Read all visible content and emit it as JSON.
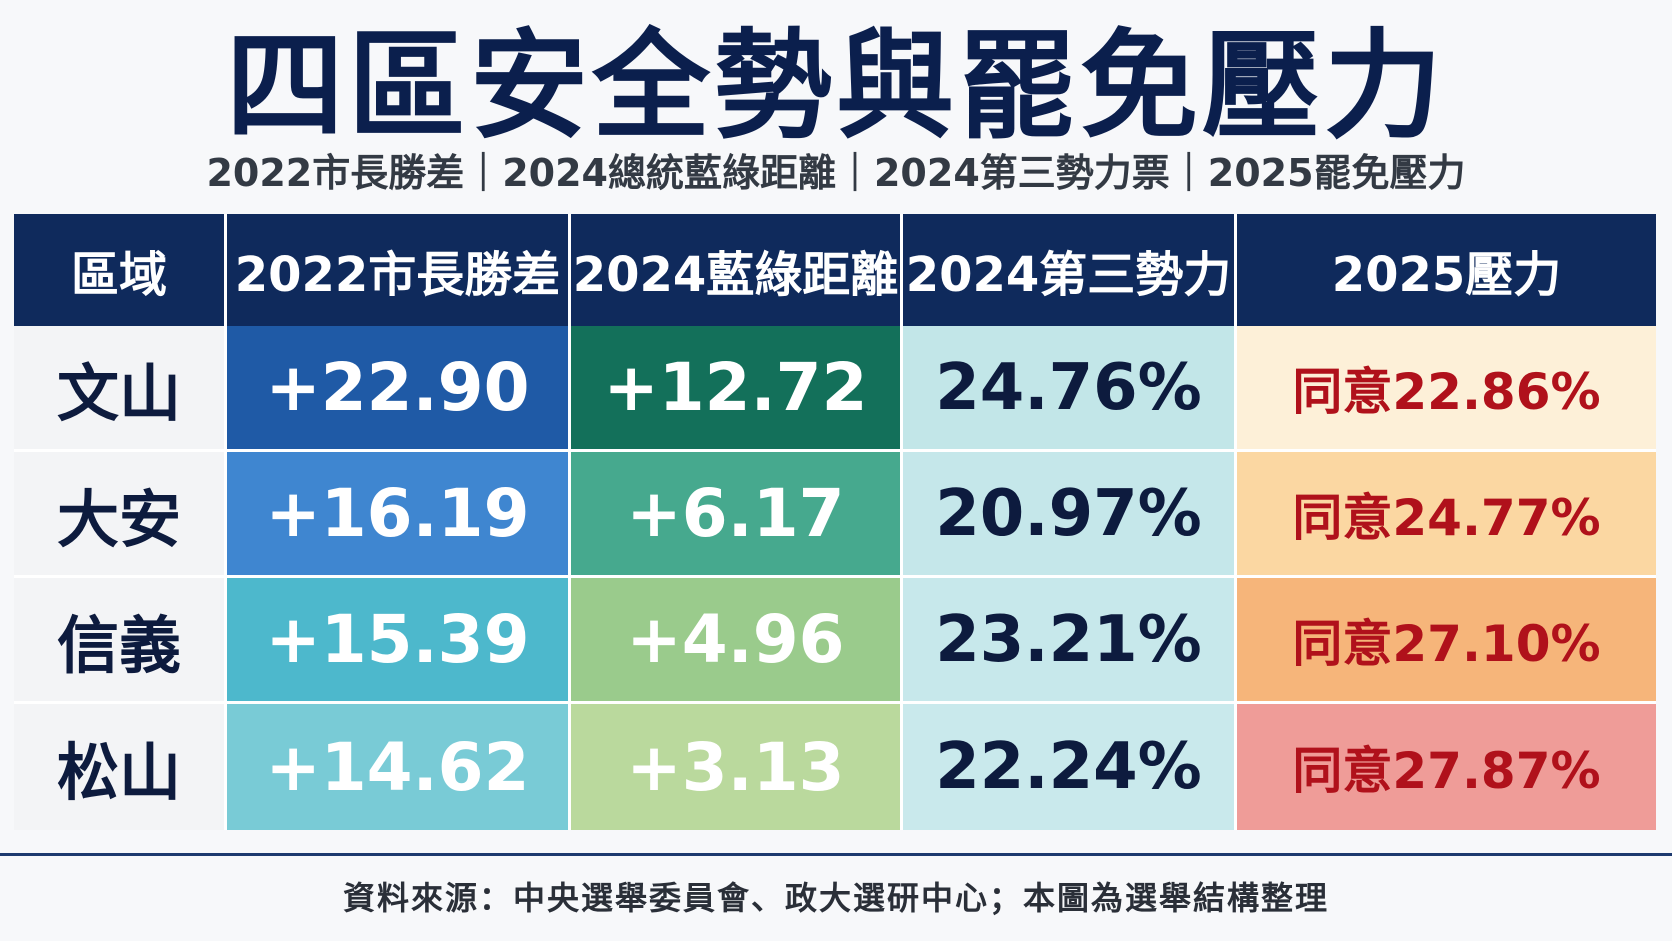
{
  "title": "四區安全勢與罷免壓力",
  "subtitle": "2022市長勝差｜2024總統藍綠距離｜2024第三勢力票｜2025罷免壓力",
  "headers": [
    "區域",
    "2022市長勝差",
    "2024藍綠距離",
    "2024第三勢力",
    "2025壓力"
  ],
  "rows": [
    {
      "district": "文山",
      "mayor_margin": "+22.90",
      "blue_green_gap": "+12.72",
      "third_force": "24.76%",
      "recall_pressure": "同意22.86%"
    },
    {
      "district": "大安",
      "mayor_margin": "+16.19",
      "blue_green_gap": "+6.17",
      "third_force": "20.97%",
      "recall_pressure": "同意24.77%"
    },
    {
      "district": "信義",
      "mayor_margin": "+15.39",
      "blue_green_gap": "+4.96",
      "third_force": "23.21%",
      "recall_pressure": "同意27.10%"
    },
    {
      "district": "松山",
      "mayor_margin": "+14.62",
      "blue_green_gap": "+3.13",
      "third_force": "22.24%",
      "recall_pressure": "同意27.87%"
    }
  ],
  "colors": {
    "mayor_margin": [
      "#1f5aa6",
      "#3f86d0",
      "#4db8cc",
      "#79cbd6"
    ],
    "blue_green_gap": [
      "#13705a",
      "#46a98e",
      "#9acb8c",
      "#bad99d"
    ],
    "third_force": [
      "#c2e6e8",
      "#c5e7ea",
      "#c7e8eb",
      "#c9e9ec"
    ],
    "recall_pressure": [
      "#fdf0d8",
      "#fbd7a2",
      "#f6b57a",
      "#ef9c98"
    ]
  },
  "source": "資料來源：中央選舉委員會、政大選研中心；本圖為選舉結構整理"
}
